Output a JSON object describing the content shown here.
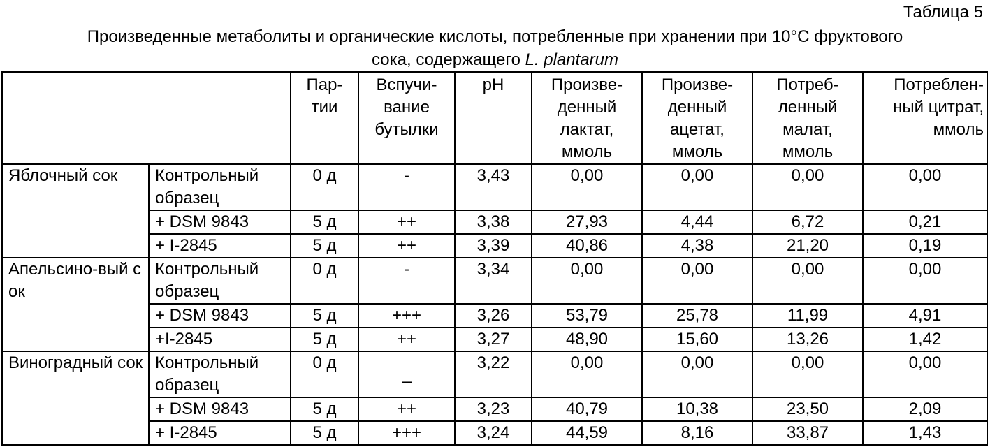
{
  "table_number": "Таблица 5",
  "title_line1": "Произведенные метаболиты и органические кислоты, потребленные при хранении при 10°С фруктового",
  "title_line2_prefix": "сока, содержащего ",
  "title_line2_italic": "L. plantarum",
  "headers": [
    "",
    "Пар-\nтии",
    "Вспучи-\nвание\nбутылки",
    "pH",
    "Произве-\nденный\nлактат,\nммоль",
    "Произве-\nденный\nацетат,\nммоль",
    "Потреб-\nленный\nмалат,\nммоль",
    "Потреблен-\nный цитрат,\nммоль"
  ],
  "groups": [
    {
      "juice": "Яблочный сок",
      "rows": [
        [
          "Контрольный образец",
          "0 д",
          "-",
          "3,43",
          "0,00",
          "0,00",
          "0,00",
          "0,00"
        ],
        [
          "+ DSM 9843",
          "5 д",
          "++",
          "3,38",
          "27,93",
          "4,44",
          "6,72",
          "0,21"
        ],
        [
          "+ I-2845",
          "5 д",
          "++",
          "3,39",
          "40,86",
          "4,38",
          "21,20",
          "0,19"
        ]
      ]
    },
    {
      "juice": "Апельсино-вый сок",
      "rows": [
        [
          "Контрольный образец",
          "0 д",
          "-",
          "3,34",
          "0,00",
          "0,00",
          "0,00",
          "0,00"
        ],
        [
          "+ DSM 9843",
          "5 д",
          "+++",
          "3,26",
          "53,79",
          "25,78",
          "11,99",
          "4,91"
        ],
        [
          "+I-2845",
          "5 д",
          "++",
          "3,27",
          "48,90",
          "15,60",
          "13,26",
          "1,42"
        ]
      ]
    },
    {
      "juice": "Виноградный сок",
      "rows": [
        [
          "Контрольный образец",
          "0 д",
          "_",
          "3,22",
          "0,00",
          "0,00",
          "0,00",
          "0,00"
        ],
        [
          "+ DSM 9843",
          "5 д",
          "++",
          "3,23",
          "40,79",
          "10,38",
          "23,50",
          "2,09"
        ],
        [
          "+ I-2845",
          "5 д",
          "+++",
          "3,24",
          "44,59",
          "8,16",
          "33,87",
          "1,43"
        ]
      ]
    }
  ]
}
